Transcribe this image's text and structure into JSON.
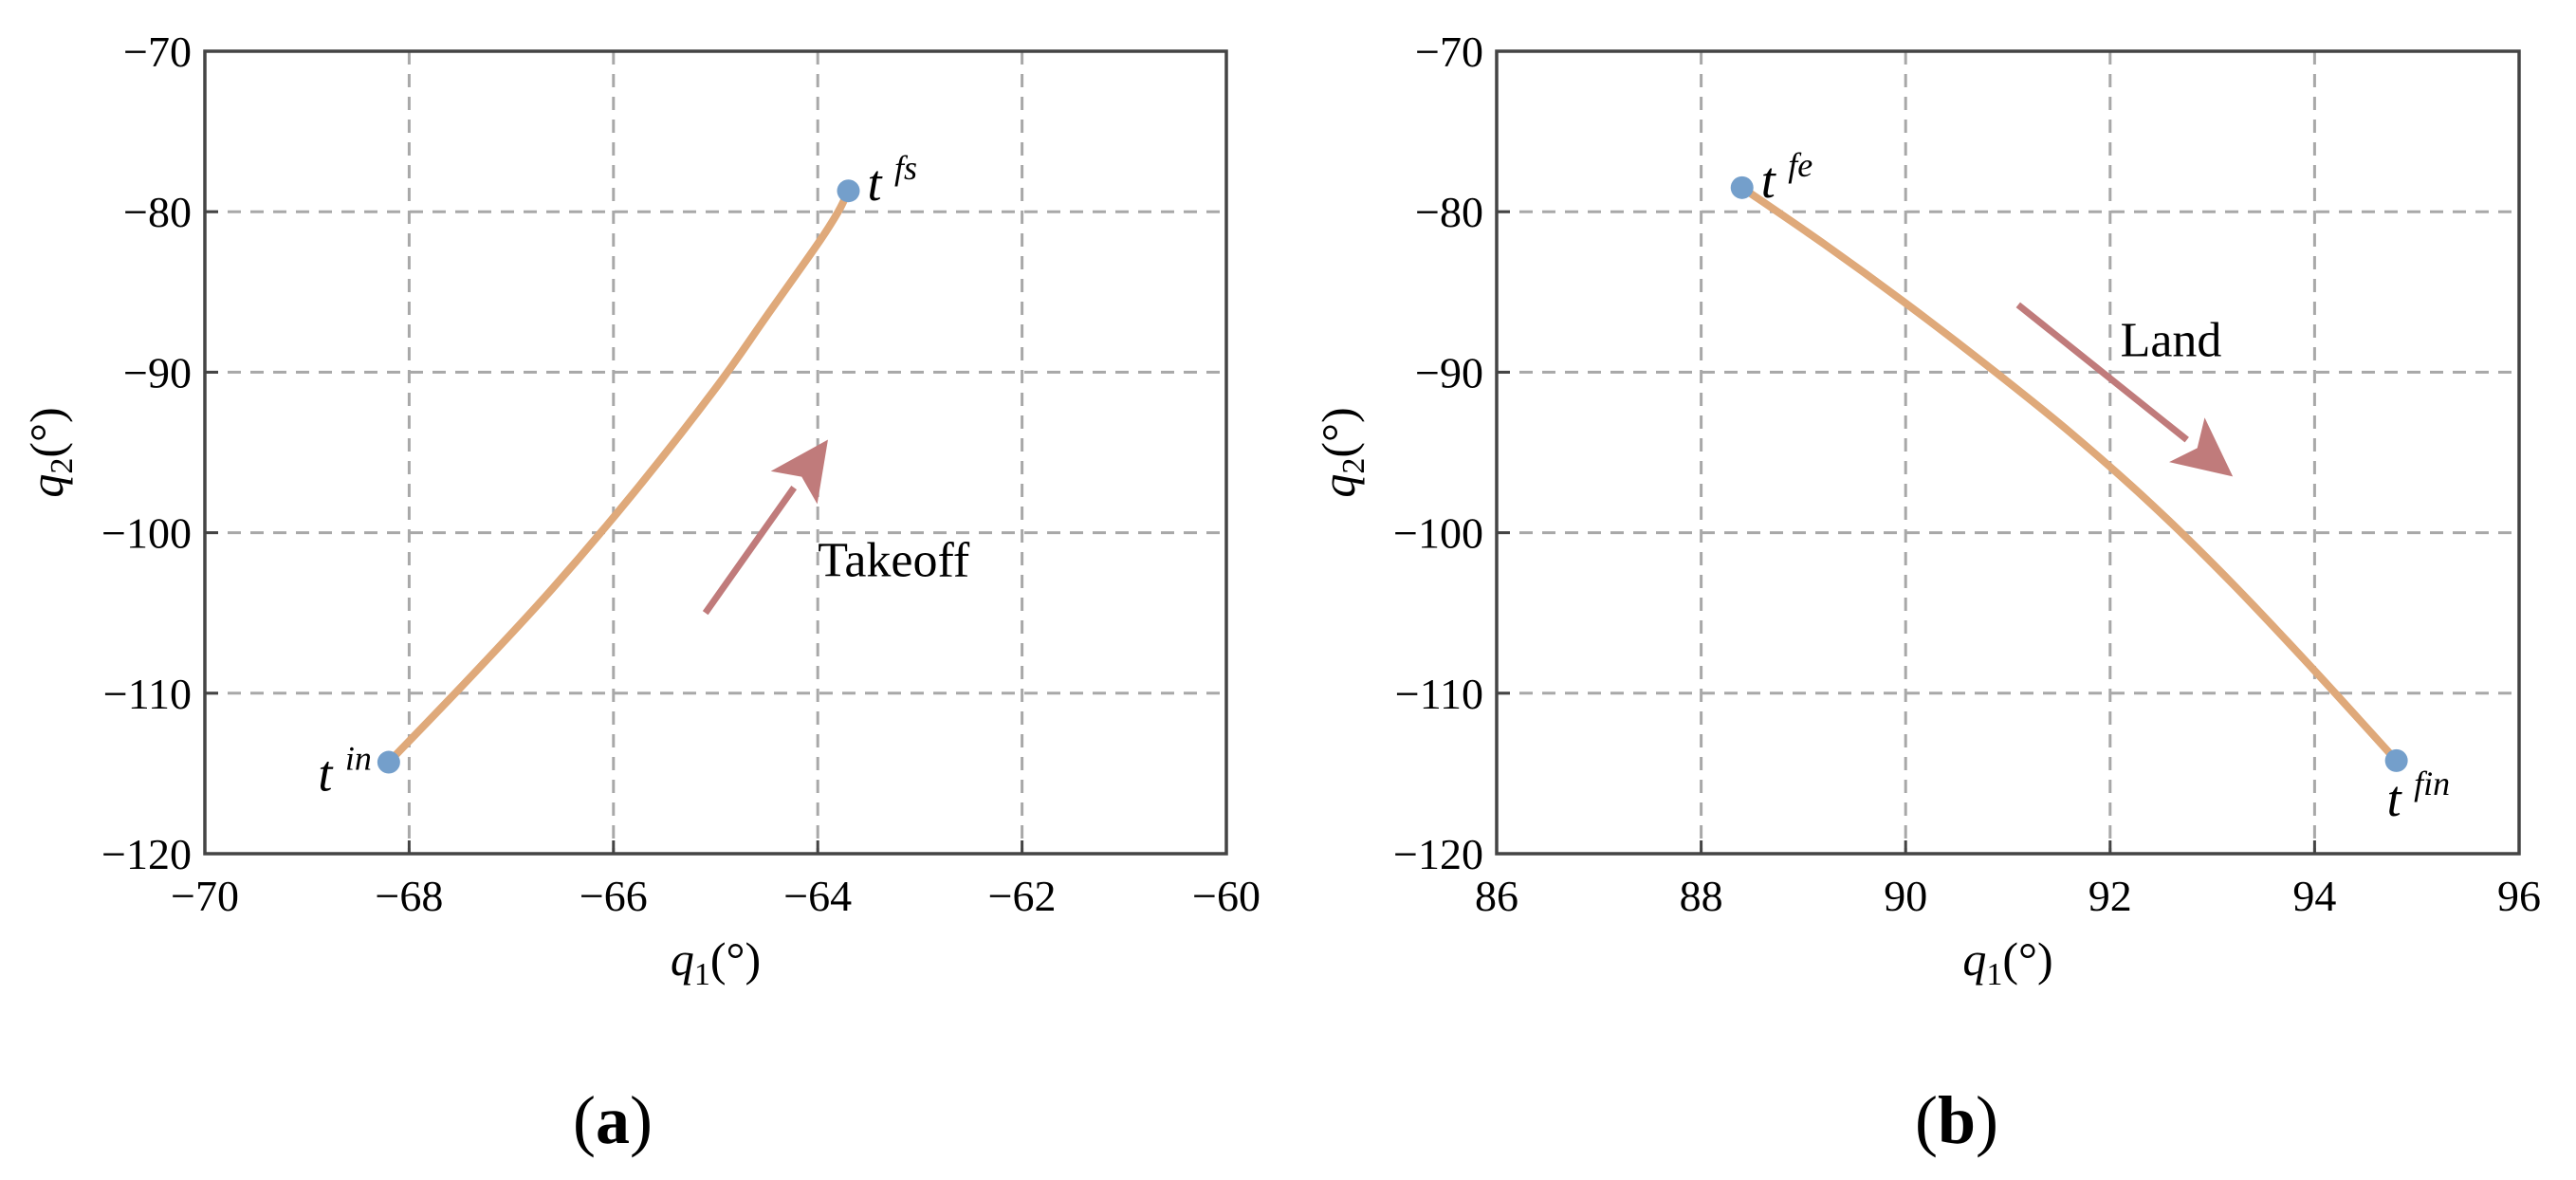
{
  "colors": {
    "curve": "#dfa97a",
    "marker": "#749fcb",
    "arrow": "#c07b7b",
    "grid": "#a8a8a8",
    "frame": "#444444"
  },
  "chart_data": [
    {
      "type": "line",
      "panel_label": "a",
      "xlabel": {
        "base": "q",
        "sub": "1",
        "unit": "(°)"
      },
      "ylabel": {
        "base": "q",
        "sub": "2",
        "unit": "(°)"
      },
      "xlim": [
        -70,
        -60
      ],
      "ylim": [
        -120,
        -70
      ],
      "xticks": [
        -70,
        -68,
        -66,
        -64,
        -62,
        -60
      ],
      "yticks": [
        -70,
        -80,
        -90,
        -100,
        -110,
        -120
      ],
      "xtick_labels": [
        "−70",
        "−68",
        "−66",
        "−64",
        "−62",
        "−60"
      ],
      "ytick_labels": [
        "−70",
        "−80",
        "−90",
        "−100",
        "−110",
        "−120"
      ],
      "grid": true,
      "series": [
        {
          "x": [
            -68.2,
            -67.4,
            -66.6,
            -65.8,
            -65.0,
            -64.5,
            -64.0,
            -63.8,
            -63.7
          ],
          "y": [
            -114.3,
            -109.0,
            -103.5,
            -97.5,
            -91.0,
            -86.5,
            -82.0,
            -80.0,
            -78.7
          ]
        }
      ],
      "points": [
        {
          "x": -68.2,
          "y": -114.3,
          "label": "t",
          "sup": "in",
          "anchor": "left"
        },
        {
          "x": -63.7,
          "y": -78.7,
          "label": "t",
          "sup": "fs",
          "anchor": "right"
        }
      ],
      "arrow": {
        "from": [
          -65.1,
          -105.0
        ],
        "to": [
          -63.9,
          -94.2
        ]
      },
      "annotation": {
        "text": "Takeoff",
        "x": -64.0,
        "y": -102.7
      }
    },
    {
      "type": "line",
      "panel_label": "b",
      "xlabel": {
        "base": "q",
        "sub": "1",
        "unit": "(°)"
      },
      "ylabel": {
        "base": "q",
        "sub": "2",
        "unit": "(°)"
      },
      "xlim": [
        86,
        96
      ],
      "ylim": [
        -120,
        -70
      ],
      "xticks": [
        86,
        88,
        90,
        92,
        94,
        96
      ],
      "yticks": [
        -70,
        -80,
        -90,
        -100,
        -110,
        -120
      ],
      "xtick_labels": [
        "86",
        "88",
        "90",
        "92",
        "94",
        "96"
      ],
      "ytick_labels": [
        "−70",
        "−80",
        "−90",
        "−100",
        "−110",
        "−120"
      ],
      "grid": true,
      "series": [
        {
          "x": [
            88.4,
            89.2,
            90.0,
            90.8,
            91.6,
            92.4,
            93.2,
            94.0,
            94.8
          ],
          "y": [
            -78.5,
            -82.0,
            -85.7,
            -89.6,
            -93.7,
            -98.2,
            -103.2,
            -108.6,
            -114.2
          ]
        }
      ],
      "points": [
        {
          "x": 88.4,
          "y": -78.5,
          "label": "t",
          "sup": "fe",
          "anchor": "right"
        },
        {
          "x": 94.8,
          "y": -114.2,
          "label": "t",
          "sup": "fin",
          "anchor": "below"
        }
      ],
      "arrow": {
        "from": [
          91.1,
          -85.8
        ],
        "to": [
          93.2,
          -96.5
        ]
      },
      "annotation": {
        "text": "Land",
        "x": 92.1,
        "y": -89.0
      }
    }
  ]
}
